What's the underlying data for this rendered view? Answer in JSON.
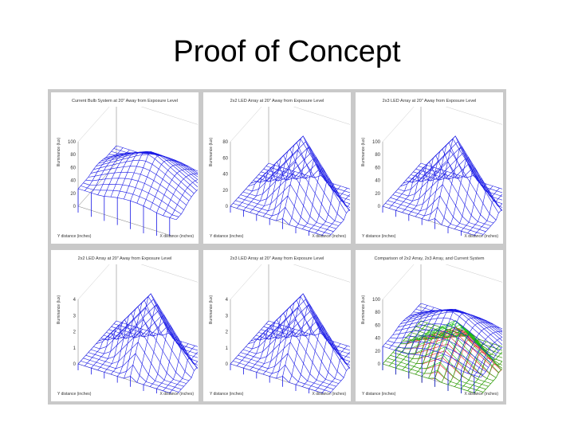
{
  "slide": {
    "title": "Proof of Concept"
  },
  "panels": [
    {
      "title": "Current Bulb System at 20\" Away from Exposure Level",
      "ylabel": "Illuminance (lux)",
      "xlabel": "X distance (inches)",
      "depth_label": "Y distance (inches)",
      "zticks": [
        "100",
        "80",
        "60",
        "40",
        "20",
        "0"
      ]
    },
    {
      "title": "2x2 LED Array at 20\" Away from Exposure Level",
      "ylabel": "Illuminance (lux)",
      "xlabel": "X distance (inches)",
      "depth_label": "Y distance (inches)",
      "zticks": [
        "80",
        "60",
        "40",
        "20",
        "0"
      ]
    },
    {
      "title": "2x3 LED Array at 20\" Away from Exposure Level",
      "ylabel": "Illuminance (lux)",
      "xlabel": "X distance (inches)",
      "depth_label": "Y distance (inches)",
      "zticks": [
        "100",
        "80",
        "60",
        "40",
        "20",
        "0"
      ]
    },
    {
      "title": "2x2 LED Array at 20\" Away from Exposure Level",
      "ylabel": "Illuminance (lux)",
      "xlabel": "X distance (inches)",
      "depth_label": "Y distance (inches)",
      "zticks": [
        "4",
        "3",
        "2",
        "1",
        "0"
      ]
    },
    {
      "title": "2x3 LED Array at 20\" Away from Exposure Level",
      "ylabel": "Illuminance (lux)",
      "xlabel": "X distance (inches)",
      "depth_label": "Y distance (inches)",
      "zticks": [
        "4",
        "3",
        "2",
        "1",
        "0"
      ]
    },
    {
      "title": "Comparison of 2x2 Array, 2x3 Array, and Current System",
      "ylabel": "Illuminance (lux)",
      "xlabel": "X distance (inches)",
      "depth_label": "Y distance (inches)",
      "zticks": [
        "100",
        "80",
        "60",
        "40",
        "20",
        "0"
      ]
    }
  ],
  "colors": {
    "surface": "#1a1ae6",
    "red": "#e02020",
    "green": "#10c010",
    "figure_bg": "#c9c9c9"
  }
}
